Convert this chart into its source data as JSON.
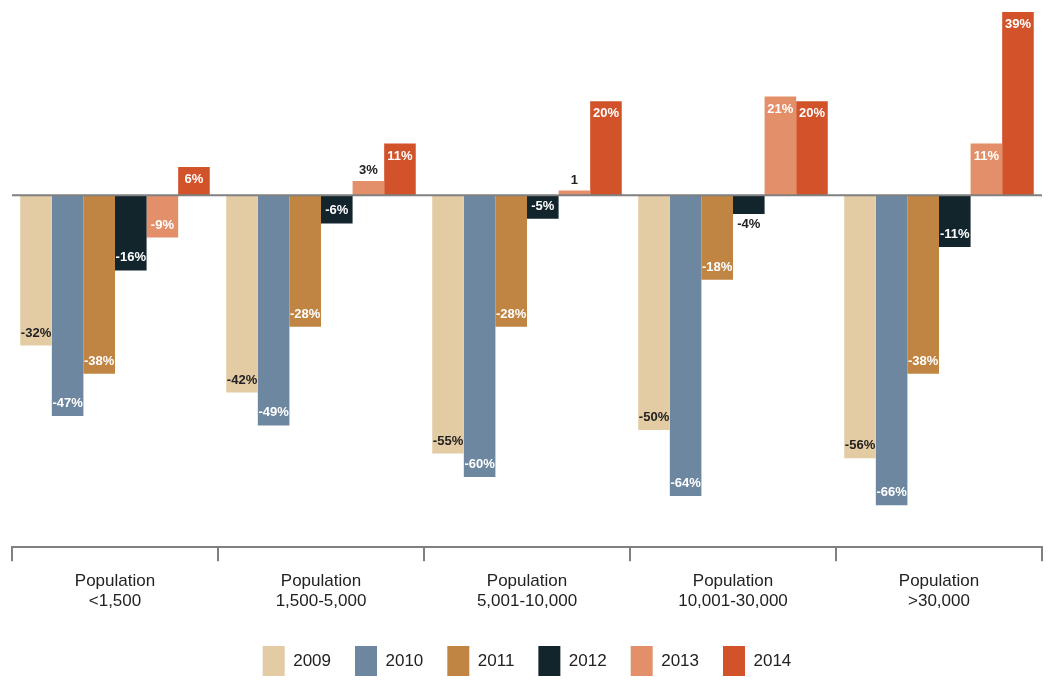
{
  "chart_data": {
    "type": "bar",
    "categories": [
      "Population <1,500",
      "Population 1,500-5,000",
      "Population 5,001-10,000",
      "Population 10,001-30,000",
      "Population >30,000"
    ],
    "series": [
      {
        "name": "2009",
        "color": "#e3cba4",
        "values": [
          -32,
          -42,
          -55,
          -50,
          -56
        ],
        "value_labels": [
          "-32%",
          "-42%",
          "-55%",
          "-50%",
          "-56%"
        ]
      },
      {
        "name": "2010",
        "color": "#6e87a0",
        "values": [
          -47,
          -49,
          -60,
          -64,
          -66
        ],
        "value_labels": [
          "-47%",
          "-49%",
          "-60%",
          "-64%",
          "-66%"
        ]
      },
      {
        "name": "2011",
        "color": "#c08443",
        "values": [
          -38,
          -28,
          -28,
          -18,
          -38
        ],
        "value_labels": [
          "-38%",
          "-28%",
          "-28%",
          "-18%",
          "-38%"
        ]
      },
      {
        "name": "2012",
        "color": "#12252d",
        "values": [
          -16,
          -6,
          -5,
          -4,
          -11
        ],
        "value_labels": [
          "-16%",
          "-6%",
          "-5%",
          "-4%",
          "-11%"
        ]
      },
      {
        "name": "2013",
        "color": "#e3906a",
        "values": [
          -9,
          3,
          1,
          21,
          11
        ],
        "value_labels": [
          "-9%",
          "3%",
          "1",
          "21%",
          "11%"
        ]
      },
      {
        "name": "2014",
        "color": "#d2522a",
        "values": [
          6,
          11,
          20,
          20,
          39
        ],
        "value_labels": [
          "6%",
          "11%",
          "20%",
          "20%",
          "39%"
        ]
      }
    ],
    "legend": "bottom"
  }
}
